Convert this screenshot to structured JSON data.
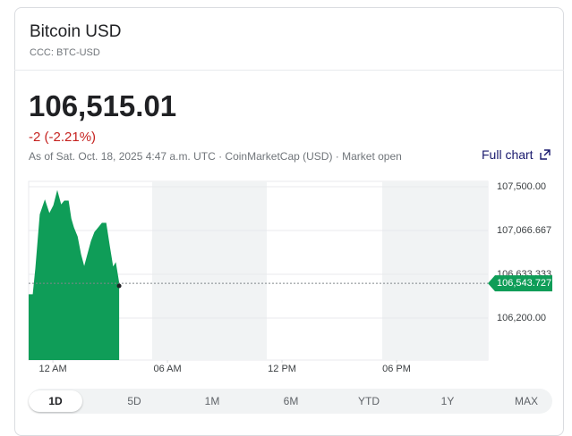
{
  "header": {
    "title": "Bitcoin USD",
    "ticker": "CCC: BTC-USD"
  },
  "quote": {
    "price": "106,515.01",
    "change": "-2 (-2.21%)",
    "as_of": "As of Sat. Oct. 18, 2025 4:47 a.m. UTC · CoinMarketCap (USD) · Market open",
    "full_chart": "Full chart"
  },
  "chart_data": {
    "type": "area",
    "color": "#0f9d58",
    "x": [
      -1.27,
      -1.03,
      -0.89,
      -0.66,
      -0.42,
      -0.19,
      0.05,
      0.23,
      0.42,
      0.61,
      0.8,
      0.94,
      1.08,
      1.27,
      1.45,
      1.64,
      1.83,
      2.02,
      2.2,
      2.39,
      2.58,
      2.77,
      2.95,
      3.14,
      3.28,
      3.47
    ],
    "values": [
      106430,
      106430,
      106695,
      107226,
      107358,
      107226,
      107314,
      107447,
      107314,
      107358,
      107358,
      107182,
      107093,
      107005,
      106828,
      106695,
      106828,
      106961,
      107049,
      107093,
      107137,
      107137,
      106916,
      106695,
      106739,
      106518
    ],
    "xlim": [
      -1.27,
      22.78
    ],
    "xticks": [
      {
        "value": 0,
        "label": "12 AM"
      },
      {
        "value": 6,
        "label": "06 AM"
      },
      {
        "value": 12,
        "label": "12 PM"
      },
      {
        "value": 18,
        "label": "06 PM"
      }
    ],
    "ylim": [
      105784,
      107553
    ],
    "yticks": [
      {
        "value": 106200,
        "label": "106,200.00"
      },
      {
        "value": 106633.333,
        "label": "106,633.333"
      },
      {
        "value": 107066.667,
        "label": "107,066.667"
      },
      {
        "value": 107500,
        "label": "107,500.00"
      }
    ],
    "grid": true,
    "price_tag": {
      "value": 106543.727,
      "label": "106,543.727"
    }
  },
  "ranges": [
    "1D",
    "5D",
    "1M",
    "6M",
    "YTD",
    "1Y",
    "MAX"
  ]
}
